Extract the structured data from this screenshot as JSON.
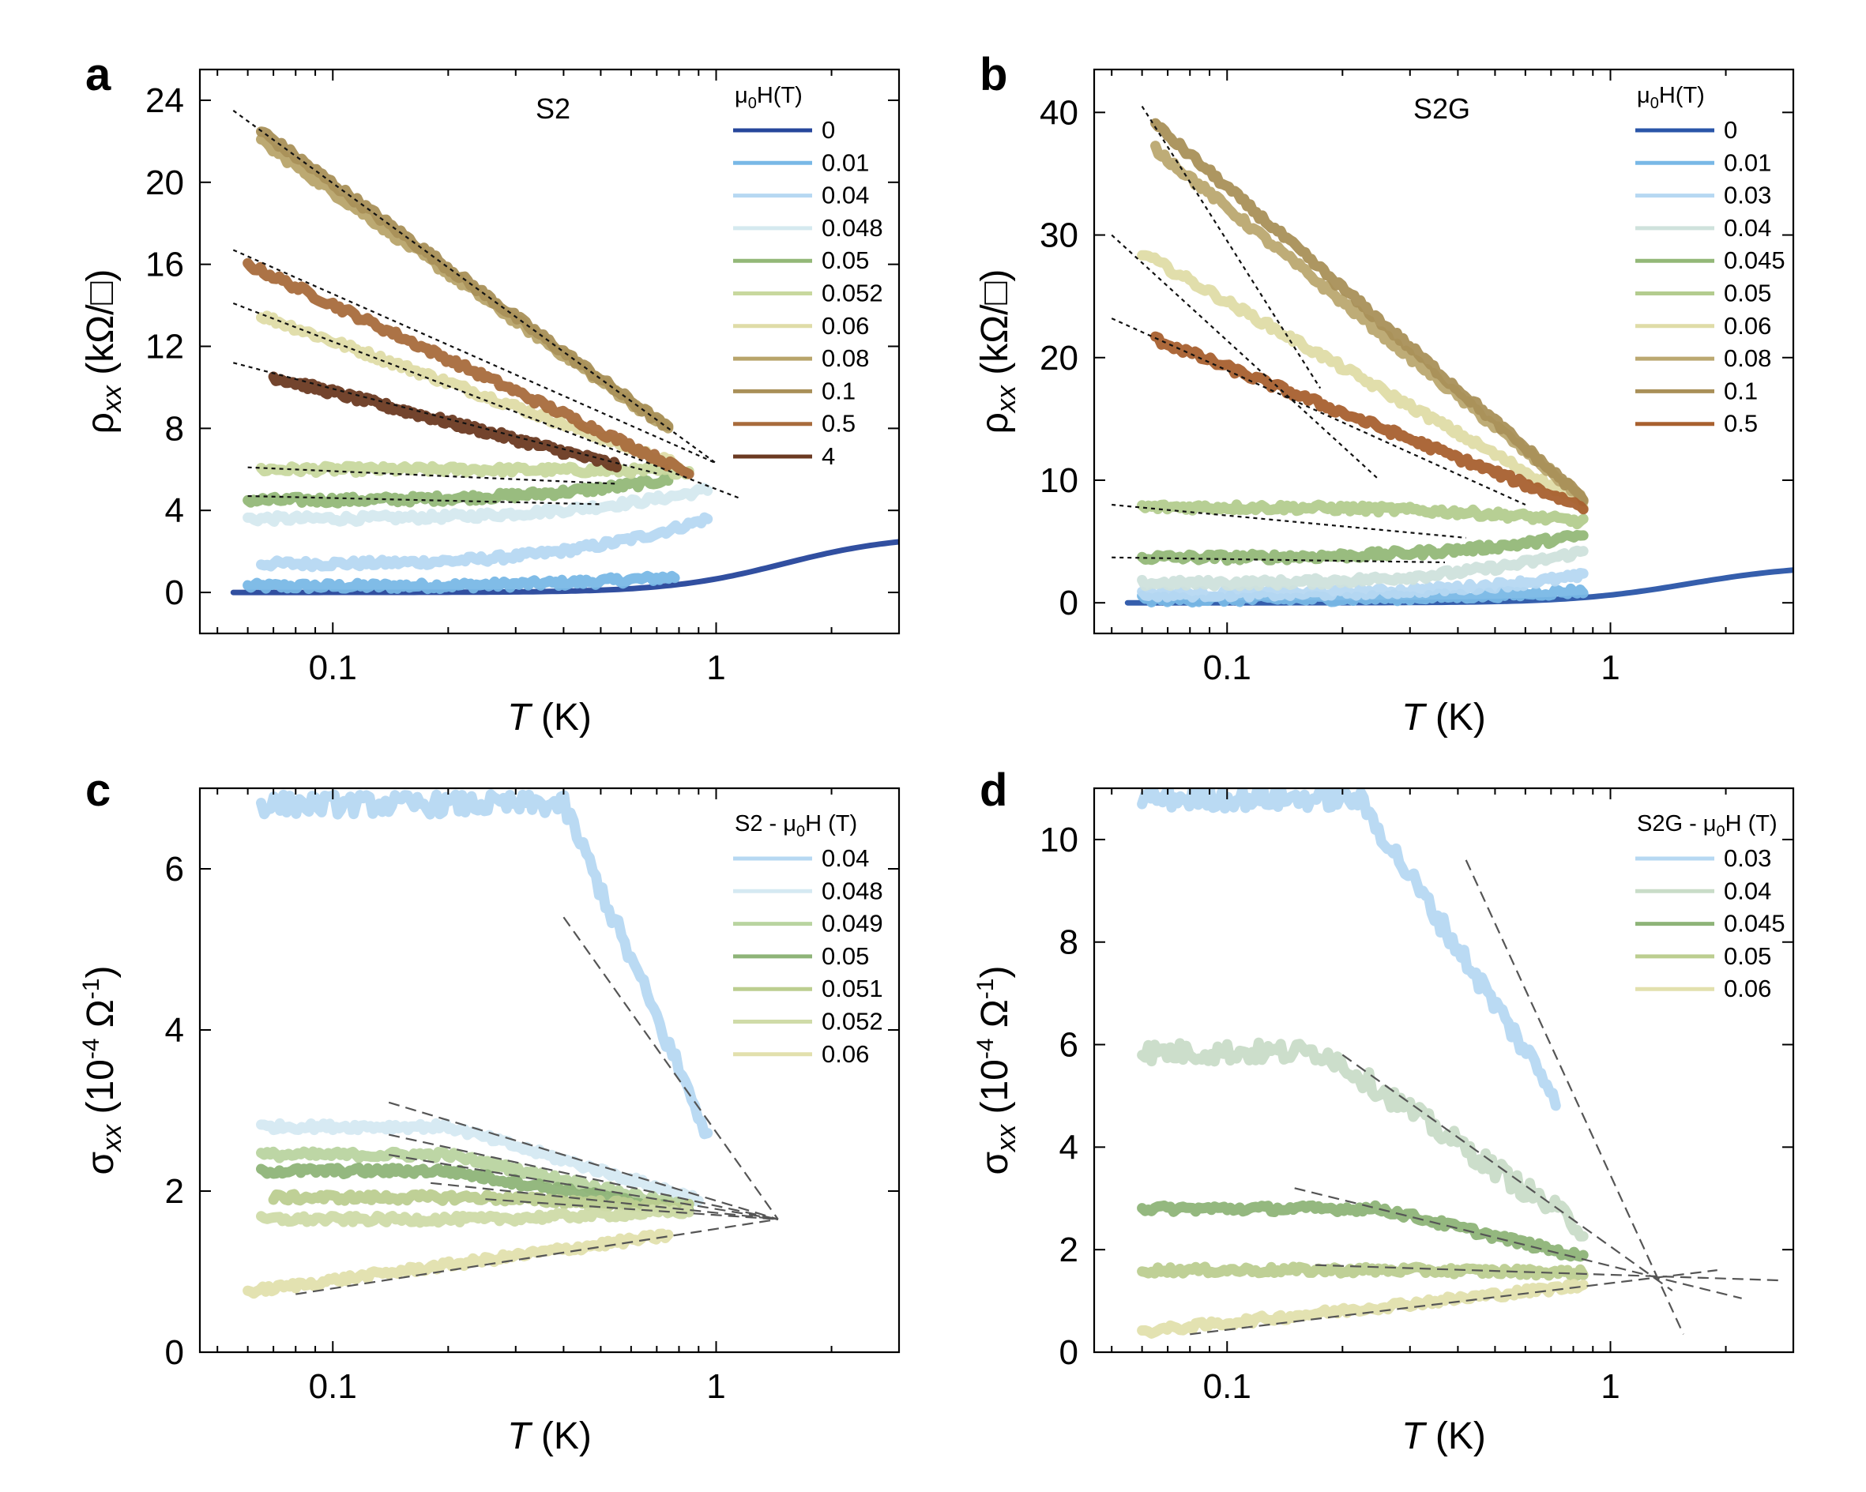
{
  "figure": {
    "panel_letters": [
      "a",
      "b",
      "c",
      "d"
    ],
    "x_axis_title": {
      "italic": "T",
      "unit": " (K)"
    },
    "x_tick_labels": [
      "0.1",
      "1"
    ]
  },
  "chart_data": [
    {
      "panel": "a",
      "type": "line",
      "sample_label": "S2",
      "xscale": "log",
      "xlim": [
        0.045,
        3.0
      ],
      "ylim": [
        -2,
        25.5
      ],
      "yticks": [
        0,
        4,
        8,
        12,
        16,
        20,
        24
      ],
      "ytick_labels": [
        "0",
        "4",
        "8",
        "12",
        "16",
        "20",
        "24"
      ],
      "ylabel": {
        "symbol": "ρ",
        "sub": "xx",
        "unit": " (kΩ/□)"
      },
      "xlabel": "T (K)",
      "legend_title": {
        "pre": "μ",
        "sub": "0",
        "post": "H(T)"
      },
      "series": [
        {
          "name": "0",
          "color": "#26469b",
          "t_range": [
            0.055,
            3.0
          ],
          "shape": "step",
          "v_low": 0.0,
          "v_high": 2.8,
          "t_mid": 1.5,
          "width": 0.45
        },
        {
          "name": "0.01",
          "color": "#79b8e6",
          "t_range": [
            0.06,
            0.78
          ],
          "shape": "flat_up",
          "v0": 0.3,
          "v1": 0.75
        },
        {
          "name": "0.04",
          "color": "#b6d8f2",
          "t_range": [
            0.065,
            0.95
          ],
          "shape": "flat_up",
          "v0": 1.4,
          "v1": 3.6
        },
        {
          "name": "0.048",
          "color": "#d5e9ef",
          "t_range": [
            0.06,
            0.95
          ],
          "shape": "flat_up",
          "v0": 3.6,
          "v1": 5.0
        },
        {
          "name": "0.05",
          "color": "#93b878",
          "t_range": [
            0.06,
            0.75
          ],
          "shape": "flat_up",
          "v0": 4.5,
          "v1": 5.5
        },
        {
          "name": "0.052",
          "color": "#c8d89e",
          "t_range": [
            0.065,
            0.85
          ],
          "shape": "flat_up",
          "v0": 6.0,
          "v1": 5.9
        },
        {
          "name": "0.06",
          "color": "#dfdca7",
          "t_range": [
            0.065,
            0.8
          ],
          "shape": "log",
          "v0": 13.5,
          "v1": 6.2
        },
        {
          "name": "0.08",
          "color": "#b8a46a",
          "t_range": [
            0.065,
            0.75
          ],
          "shape": "log",
          "v0": 22.0,
          "v1": 8.0
        },
        {
          "name": "0.1",
          "color": "#a99058",
          "t_range": [
            0.065,
            0.75
          ],
          "shape": "log",
          "v0": 22.5,
          "v1": 8.0
        },
        {
          "name": "0.5",
          "color": "#a86b3c",
          "t_range": [
            0.06,
            0.85
          ],
          "shape": "log",
          "v0": 16.0,
          "v1": 5.8
        },
        {
          "name": "4",
          "color": "#6b3a22",
          "t_range": [
            0.07,
            0.55
          ],
          "shape": "log",
          "v0": 10.5,
          "v1": 6.2
        }
      ],
      "fit_lines": [
        {
          "t": [
            0.055,
            1.0
          ],
          "v": [
            23.5,
            6.3
          ]
        },
        {
          "t": [
            0.055,
            1.0
          ],
          "v": [
            16.7,
            6.3
          ]
        },
        {
          "t": [
            0.055,
            1.15
          ],
          "v": [
            14.1,
            4.6
          ]
        },
        {
          "t": [
            0.055,
            0.7
          ],
          "v": [
            11.2,
            5.8
          ]
        },
        {
          "t": [
            0.06,
            0.55
          ],
          "v": [
            6.1,
            5.3
          ]
        },
        {
          "t": [
            0.06,
            0.5
          ],
          "v": [
            4.7,
            4.3
          ]
        }
      ]
    },
    {
      "panel": "b",
      "type": "line",
      "sample_label": "S2G",
      "xscale": "log",
      "xlim": [
        0.045,
        3.0
      ],
      "ylim": [
        -2.5,
        43.5
      ],
      "yticks": [
        0,
        10,
        20,
        30,
        40
      ],
      "ytick_labels": [
        "0",
        "10",
        "20",
        "30",
        "40"
      ],
      "ylabel": {
        "symbol": "ρ",
        "sub": "xx",
        "unit": " (kΩ/□)"
      },
      "xlabel": "T (K)",
      "legend_title": {
        "pre": "μ",
        "sub": "0",
        "post": "H(T)"
      },
      "series": [
        {
          "name": "0",
          "color": "#2a55a8",
          "t_range": [
            0.055,
            3.0
          ],
          "shape": "step",
          "v_low": 0.0,
          "v_high": 3.1,
          "t_mid": 1.6,
          "width": 0.45
        },
        {
          "name": "0.01",
          "color": "#79b8e6",
          "t_range": [
            0.06,
            0.85
          ],
          "shape": "flat_up",
          "v0": 0.3,
          "v1": 1.0
        },
        {
          "name": "0.03",
          "color": "#b6d8f2",
          "t_range": [
            0.06,
            0.85
          ],
          "shape": "flat_up",
          "v0": 0.7,
          "v1": 2.2
        },
        {
          "name": "0.04",
          "color": "#cfe2dc",
          "t_range": [
            0.06,
            0.85
          ],
          "shape": "flat_up",
          "v0": 1.6,
          "v1": 4.2
        },
        {
          "name": "0.045",
          "color": "#93b878",
          "t_range": [
            0.06,
            0.85
          ],
          "shape": "flat_up",
          "v0": 3.7,
          "v1": 5.5
        },
        {
          "name": "0.05",
          "color": "#b3cc8e",
          "t_range": [
            0.06,
            0.85
          ],
          "shape": "flat_up",
          "v0": 7.8,
          "v1": 6.6
        },
        {
          "name": "0.06",
          "color": "#dfdca7",
          "t_range": [
            0.06,
            0.85
          ],
          "shape": "log",
          "v0": 28.5,
          "v1": 8.0
        },
        {
          "name": "0.08",
          "color": "#bba870",
          "t_range": [
            0.065,
            0.85
          ],
          "shape": "log",
          "v0": 37.0,
          "v1": 8.5
        },
        {
          "name": "0.1",
          "color": "#a99058",
          "t_range": [
            0.065,
            0.85
          ],
          "shape": "log",
          "v0": 39.0,
          "v1": 8.5
        },
        {
          "name": "0.5",
          "color": "#a8602f",
          "t_range": [
            0.065,
            0.85
          ],
          "shape": "log",
          "v0": 21.5,
          "v1": 7.8
        }
      ],
      "fit_lines": [
        {
          "t": [
            0.06,
            0.175
          ],
          "v": [
            40.5,
            17.5
          ]
        },
        {
          "t": [
            0.05,
            0.25
          ],
          "v": [
            30.0,
            10.0
          ]
        },
        {
          "t": [
            0.05,
            0.6
          ],
          "v": [
            23.2,
            8.0
          ]
        },
        {
          "t": [
            0.05,
            0.42
          ],
          "v": [
            8.0,
            5.3
          ]
        },
        {
          "t": [
            0.05,
            0.37
          ],
          "v": [
            3.7,
            3.3
          ]
        }
      ]
    },
    {
      "panel": "c",
      "type": "line",
      "xscale": "log",
      "xlim": [
        0.045,
        3.0
      ],
      "ylim": [
        0,
        7.0
      ],
      "yticks": [
        0,
        2,
        4,
        6
      ],
      "ytick_labels": [
        "0",
        "2",
        "4",
        "6"
      ],
      "ylabel": {
        "symbol": "σ",
        "sub": "xx",
        "unit_pre": " (10",
        "sup": "-4",
        "unit_mid": " Ω",
        "sup2": "-1",
        "unit_post": ")"
      },
      "xlabel": "T (K)",
      "legend_title": {
        "pre": "S2 - μ",
        "sub": "0",
        "post": "H (T)"
      },
      "series": [
        {
          "name": "0.04",
          "color": "#b6d8f2",
          "t_range": [
            0.065,
            0.95
          ],
          "shape": "sat",
          "plateau": 6.8,
          "knee": 0.4,
          "v1": 2.7
        },
        {
          "name": "0.048",
          "color": "#d5e9f2",
          "t_range": [
            0.065,
            0.9
          ],
          "shape": "sat",
          "plateau": 2.8,
          "knee": 0.2,
          "v1": 1.9
        },
        {
          "name": "0.049",
          "color": "#b9d4a0",
          "t_range": [
            0.065,
            0.85
          ],
          "shape": "sat",
          "plateau": 2.45,
          "knee": 0.2,
          "v1": 1.8
        },
        {
          "name": "0.05",
          "color": "#8eb478",
          "t_range": [
            0.065,
            0.85
          ],
          "shape": "sat",
          "plateau": 2.25,
          "knee": 0.2,
          "v1": 1.75
        },
        {
          "name": "0.051",
          "color": "#bcce90",
          "t_range": [
            0.07,
            0.85
          ],
          "shape": "sat",
          "plateau": 1.92,
          "knee": 0.25,
          "v1": 1.8
        },
        {
          "name": "0.052",
          "color": "#cfdba8",
          "t_range": [
            0.065,
            0.85
          ],
          "shape": "sat",
          "plateau": 1.65,
          "knee": 0.25,
          "v1": 1.75
        },
        {
          "name": "0.06",
          "color": "#e2e0ad",
          "t_range": [
            0.06,
            0.75
          ],
          "shape": "log",
          "v0": 0.75,
          "v1": 1.45
        }
      ],
      "fit_lines": [
        {
          "t": [
            0.4,
            1.45
          ],
          "v": [
            5.4,
            1.65
          ]
        },
        {
          "t": [
            0.14,
            1.45
          ],
          "v": [
            3.1,
            1.65
          ]
        },
        {
          "t": [
            0.14,
            1.45
          ],
          "v": [
            2.7,
            1.65
          ]
        },
        {
          "t": [
            0.14,
            1.45
          ],
          "v": [
            2.45,
            1.65
          ]
        },
        {
          "t": [
            0.18,
            1.45
          ],
          "v": [
            2.1,
            1.65
          ]
        },
        {
          "t": [
            0.25,
            1.45
          ],
          "v": [
            1.9,
            1.65
          ]
        },
        {
          "t": [
            0.08,
            1.45
          ],
          "v": [
            0.72,
            1.65
          ]
        }
      ]
    },
    {
      "panel": "d",
      "type": "line",
      "xscale": "log",
      "xlim": [
        0.045,
        3.0
      ],
      "ylim": [
        0,
        11.0
      ],
      "yticks": [
        0,
        2,
        4,
        6,
        8,
        10
      ],
      "ytick_labels": [
        "0",
        "2",
        "4",
        "6",
        "8",
        "10"
      ],
      "ylabel": {
        "symbol": "σ",
        "sub": "xx",
        "unit_pre": " (10",
        "sup": "-4",
        "unit_mid": " Ω",
        "sup2": "-1",
        "unit_post": ")"
      },
      "xlabel": "T (K)",
      "legend_title": {
        "pre": "S2G - μ",
        "sub": "0",
        "post": "H (T)"
      },
      "series": [
        {
          "name": "0.03",
          "color": "#b6d8f2",
          "t_range": [
            0.06,
            0.72
          ],
          "shape": "sat",
          "plateau": 10.8,
          "knee": 0.22,
          "v1": 5.0
        },
        {
          "name": "0.04",
          "color": "#c9dcc8",
          "t_range": [
            0.06,
            0.85
          ],
          "shape": "sat",
          "plateau": 5.85,
          "knee": 0.18,
          "v1": 2.4
        },
        {
          "name": "0.045",
          "color": "#8eb478",
          "t_range": [
            0.06,
            0.85
          ],
          "shape": "sat",
          "plateau": 2.8,
          "knee": 0.25,
          "v1": 1.85
        },
        {
          "name": "0.05",
          "color": "#bcce90",
          "t_range": [
            0.06,
            0.85
          ],
          "shape": "sat",
          "plateau": 1.6,
          "knee": 0.3,
          "v1": 1.55
        },
        {
          "name": "0.06",
          "color": "#e2e0ad",
          "t_range": [
            0.06,
            0.85
          ],
          "shape": "log",
          "v0": 0.4,
          "v1": 1.3
        }
      ],
      "fit_lines": [
        {
          "t": [
            0.42,
            1.55
          ],
          "v": [
            9.6,
            0.35
          ]
        },
        {
          "t": [
            0.2,
            1.45
          ],
          "v": [
            5.8,
            1.2
          ]
        },
        {
          "t": [
            0.15,
            2.2
          ],
          "v": [
            3.2,
            1.05
          ]
        },
        {
          "t": [
            0.17,
            2.8
          ],
          "v": [
            1.7,
            1.4
          ]
        },
        {
          "t": [
            0.08,
            1.9
          ],
          "v": [
            0.35,
            1.6
          ]
        }
      ]
    }
  ]
}
